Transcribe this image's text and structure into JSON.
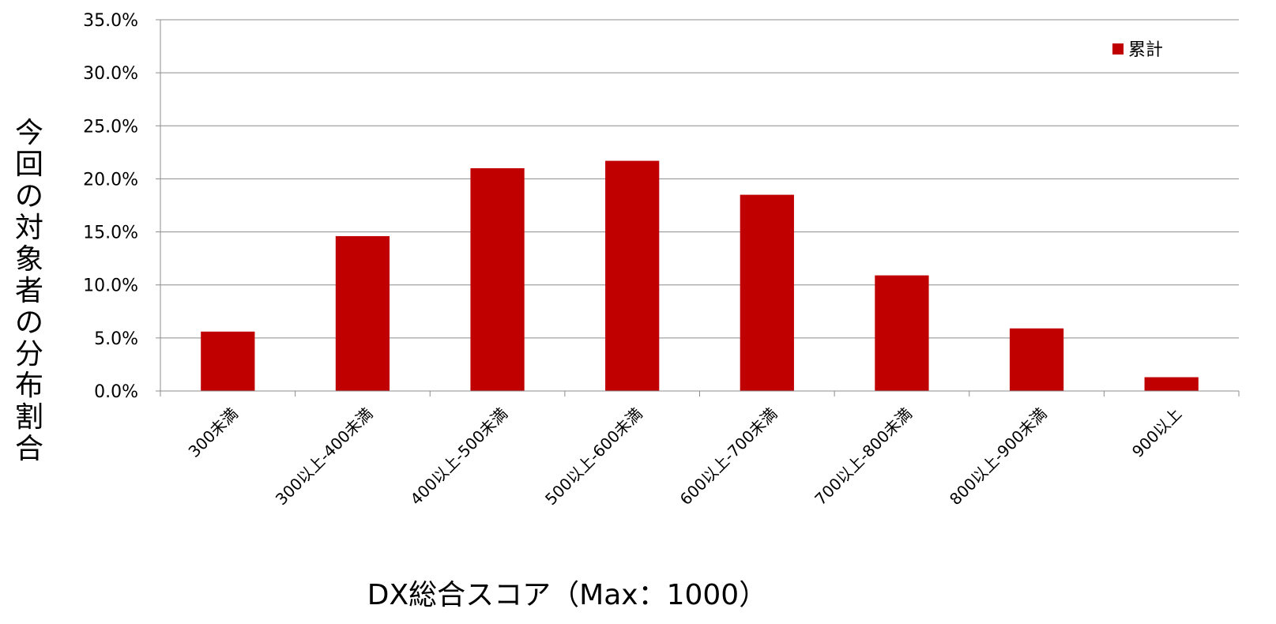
{
  "chart_data": {
    "type": "bar",
    "title": "",
    "xlabel": "DX総合スコア（Max：1000）",
    "ylabel": "今回の対象者の分布割合",
    "categories": [
      "300未満",
      "300以上-400未満",
      "400以上-500未満",
      "500以上-600未満",
      "600以上-700未満",
      "700以上-800未満",
      "800以上-900未満",
      "900以上"
    ],
    "series": [
      {
        "name": "累計",
        "color": "#c00000",
        "values": [
          5.6,
          14.6,
          21.0,
          21.7,
          18.5,
          10.9,
          5.9,
          1.3
        ]
      }
    ],
    "ylim": [
      0,
      35
    ],
    "yticks": [
      "0.0%",
      "5.0%",
      "10.0%",
      "15.0%",
      "20.0%",
      "25.0%",
      "30.0%",
      "35.0%"
    ],
    "grid": true,
    "legend_position": "top-right"
  }
}
